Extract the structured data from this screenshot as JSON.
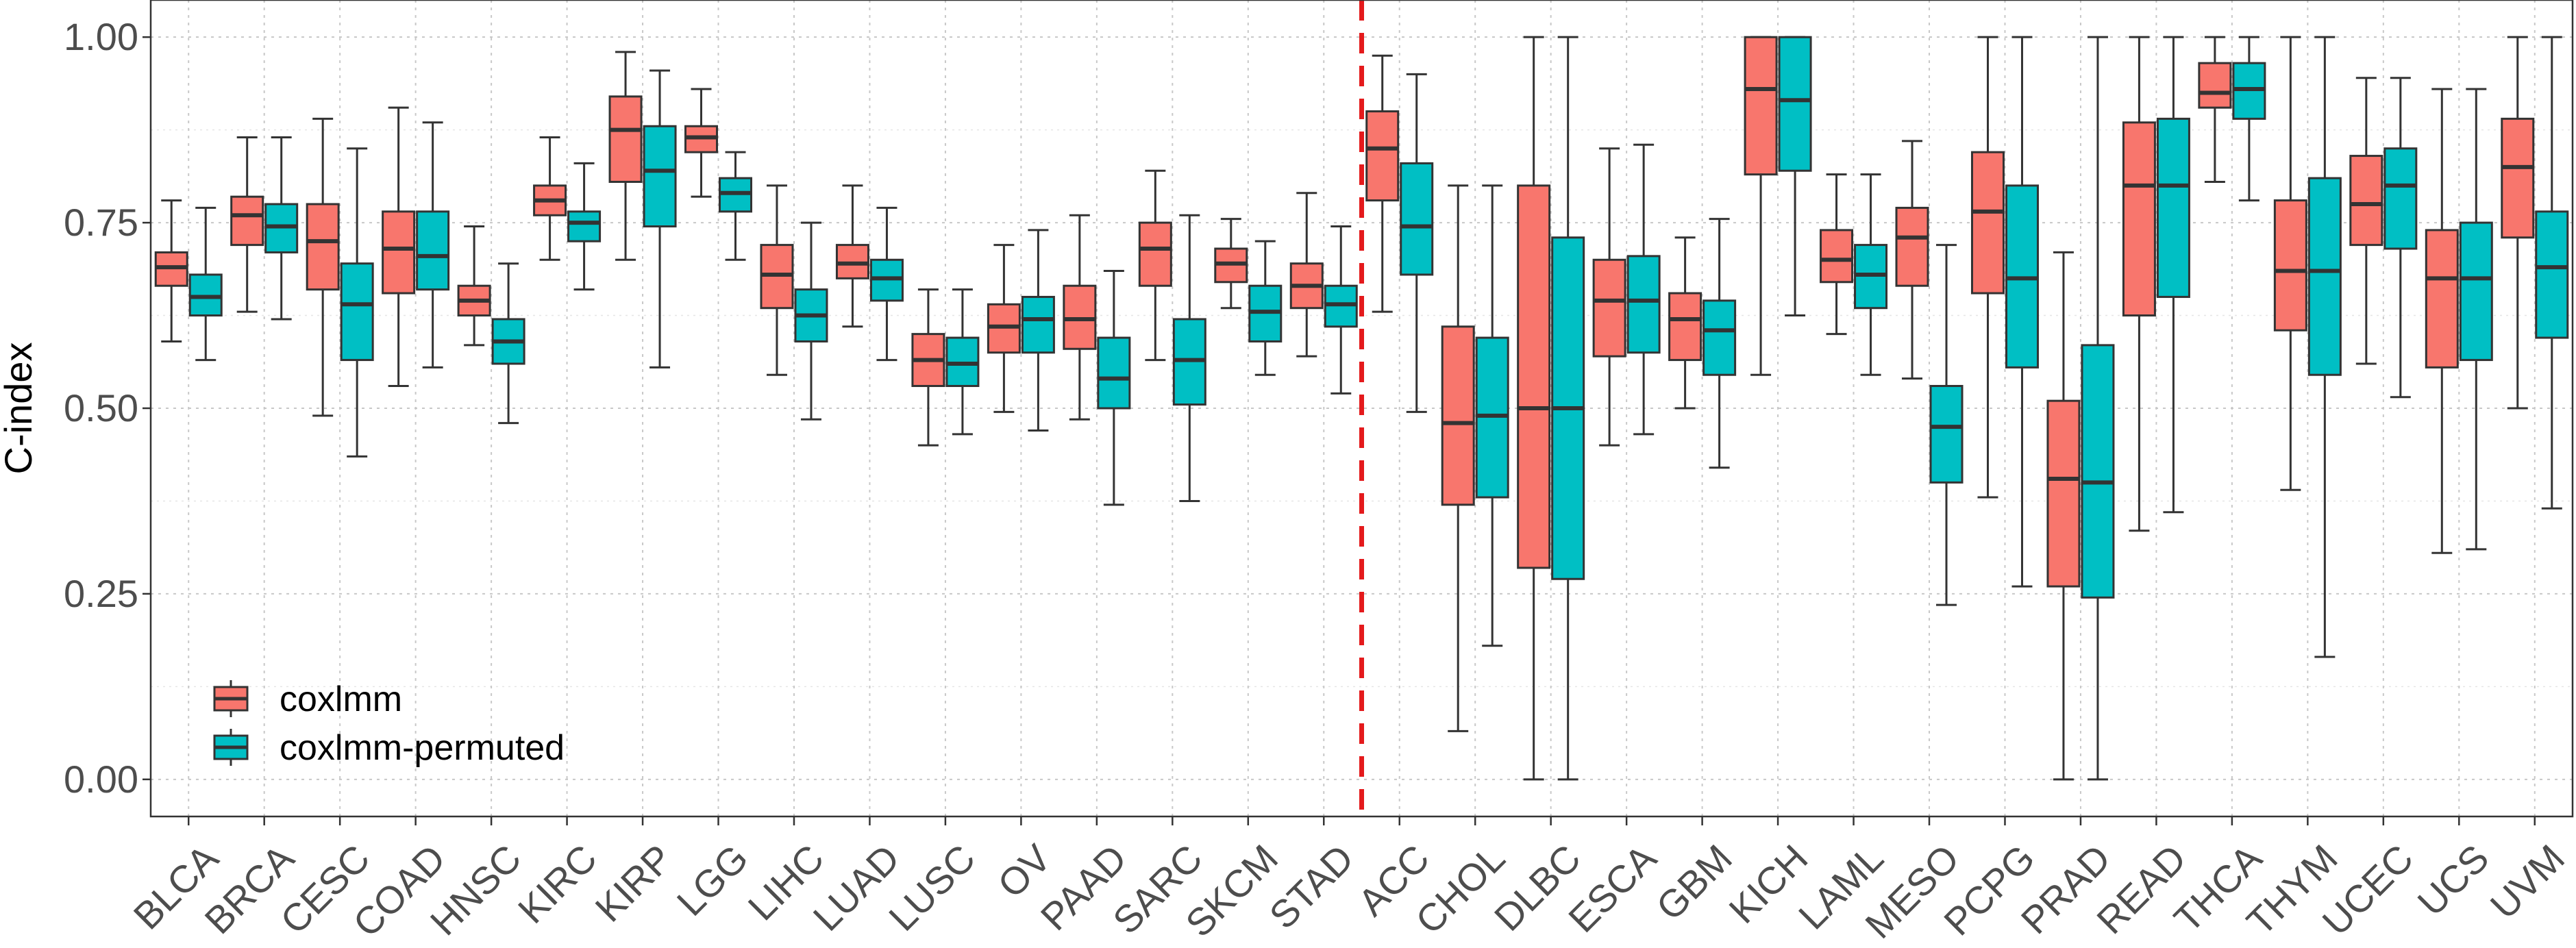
{
  "chart_data": {
    "type": "box",
    "ylabel": "C-index",
    "xlabel": "",
    "ylim": [
      -0.05,
      1.05
    ],
    "yticks": [
      0.0,
      0.25,
      0.5,
      0.75,
      1.0
    ],
    "ytick_labels": [
      "0.00",
      "0.25",
      "0.50",
      "0.75",
      "1.00"
    ],
    "grid": true,
    "legend_position": "bottom-left",
    "divider_after": "STAD",
    "colors": {
      "coxlmm": "#F8766D",
      "coxlmm-permuted": "#00BFC4",
      "divider": "#E41A1C"
    },
    "categories": [
      "BLCA",
      "BRCA",
      "CESC",
      "COAD",
      "HNSC",
      "KIRC",
      "KIRP",
      "LGG",
      "LIHC",
      "LUAD",
      "LUSC",
      "OV",
      "PAAD",
      "SARC",
      "SKCM",
      "STAD",
      "ACC",
      "CHOL",
      "DLBC",
      "ESCA",
      "GBM",
      "KICH",
      "LAML",
      "MESO",
      "PCPG",
      "PRAD",
      "READ",
      "THCA",
      "THYM",
      "UCEC",
      "UCS",
      "UVM"
    ],
    "series": [
      {
        "name": "coxlmm",
        "boxes": [
          [
            0.59,
            0.665,
            0.69,
            0.71,
            0.78
          ],
          [
            0.63,
            0.72,
            0.76,
            0.785,
            0.865
          ],
          [
            0.49,
            0.66,
            0.725,
            0.775,
            0.89
          ],
          [
            0.53,
            0.655,
            0.715,
            0.765,
            0.905
          ],
          [
            0.585,
            0.625,
            0.645,
            0.665,
            0.745
          ],
          [
            0.7,
            0.76,
            0.78,
            0.8,
            0.865
          ],
          [
            0.7,
            0.805,
            0.875,
            0.92,
            0.98
          ],
          [
            0.785,
            0.845,
            0.865,
            0.88,
            0.93
          ],
          [
            0.545,
            0.635,
            0.68,
            0.72,
            0.8
          ],
          [
            0.61,
            0.675,
            0.695,
            0.72,
            0.8
          ],
          [
            0.45,
            0.53,
            0.565,
            0.6,
            0.66
          ],
          [
            0.495,
            0.575,
            0.61,
            0.64,
            0.72
          ],
          [
            0.485,
            0.58,
            0.62,
            0.665,
            0.76
          ],
          [
            0.565,
            0.665,
            0.715,
            0.75,
            0.82
          ],
          [
            0.635,
            0.67,
            0.695,
            0.715,
            0.755
          ],
          [
            0.57,
            0.635,
            0.665,
            0.695,
            0.79
          ],
          [
            0.63,
            0.78,
            0.85,
            0.9,
            0.975
          ],
          [
            0.065,
            0.37,
            0.48,
            0.61,
            0.8
          ],
          [
            0.0,
            0.285,
            0.5,
            0.8,
            1.0
          ],
          [
            0.45,
            0.57,
            0.645,
            0.7,
            0.85
          ],
          [
            0.5,
            0.565,
            0.62,
            0.655,
            0.73
          ],
          [
            0.545,
            0.815,
            0.93,
            1.0,
            1.0
          ],
          [
            0.6,
            0.67,
            0.7,
            0.74,
            0.815
          ],
          [
            0.54,
            0.665,
            0.73,
            0.77,
            0.86
          ],
          [
            0.38,
            0.655,
            0.765,
            0.845,
            1.0
          ],
          [
            0.0,
            0.26,
            0.405,
            0.51,
            0.71
          ],
          [
            0.335,
            0.625,
            0.8,
            0.885,
            1.0
          ],
          [
            0.805,
            0.905,
            0.925,
            0.965,
            1.0
          ],
          [
            0.39,
            0.605,
            0.685,
            0.78,
            1.0
          ],
          [
            0.56,
            0.72,
            0.775,
            0.84,
            0.945
          ],
          [
            0.305,
            0.555,
            0.675,
            0.74,
            0.93
          ],
          [
            0.5,
            0.73,
            0.825,
            0.89,
            1.0
          ]
        ]
      },
      {
        "name": "coxlmm-permuted",
        "boxes": [
          [
            0.565,
            0.625,
            0.65,
            0.68,
            0.77
          ],
          [
            0.62,
            0.71,
            0.745,
            0.775,
            0.865
          ],
          [
            0.435,
            0.565,
            0.64,
            0.695,
            0.85
          ],
          [
            0.555,
            0.66,
            0.705,
            0.765,
            0.885
          ],
          [
            0.48,
            0.56,
            0.59,
            0.62,
            0.695
          ],
          [
            0.66,
            0.725,
            0.75,
            0.765,
            0.83
          ],
          [
            0.555,
            0.745,
            0.82,
            0.88,
            0.955
          ],
          [
            0.7,
            0.765,
            0.79,
            0.81,
            0.845
          ],
          [
            0.485,
            0.59,
            0.625,
            0.66,
            0.75
          ],
          [
            0.565,
            0.645,
            0.675,
            0.7,
            0.77
          ],
          [
            0.465,
            0.53,
            0.56,
            0.595,
            0.66
          ],
          [
            0.47,
            0.575,
            0.62,
            0.65,
            0.74
          ],
          [
            0.37,
            0.5,
            0.54,
            0.595,
            0.685
          ],
          [
            0.375,
            0.505,
            0.565,
            0.62,
            0.76
          ],
          [
            0.545,
            0.59,
            0.63,
            0.665,
            0.725
          ],
          [
            0.52,
            0.61,
            0.64,
            0.665,
            0.745
          ],
          [
            0.495,
            0.68,
            0.745,
            0.83,
            0.95
          ],
          [
            0.18,
            0.38,
            0.49,
            0.595,
            0.8
          ],
          [
            0.0,
            0.27,
            0.5,
            0.73,
            1.0
          ],
          [
            0.465,
            0.575,
            0.645,
            0.705,
            0.855
          ],
          [
            0.42,
            0.545,
            0.605,
            0.645,
            0.755
          ],
          [
            0.625,
            0.82,
            0.915,
            1.0,
            1.0
          ],
          [
            0.545,
            0.635,
            0.68,
            0.72,
            0.815
          ],
          [
            0.235,
            0.4,
            0.475,
            0.53,
            0.72
          ],
          [
            0.26,
            0.555,
            0.675,
            0.8,
            1.0
          ],
          [
            0.0,
            0.245,
            0.4,
            0.585,
            1.0
          ],
          [
            0.36,
            0.65,
            0.8,
            0.89,
            1.0
          ],
          [
            0.78,
            0.89,
            0.93,
            0.965,
            1.0
          ],
          [
            0.165,
            0.545,
            0.685,
            0.81,
            1.0
          ],
          [
            0.515,
            0.715,
            0.8,
            0.85,
            0.945
          ],
          [
            0.31,
            0.565,
            0.675,
            0.75,
            0.93
          ],
          [
            0.365,
            0.595,
            0.69,
            0.765,
            1.0
          ]
        ]
      }
    ]
  }
}
